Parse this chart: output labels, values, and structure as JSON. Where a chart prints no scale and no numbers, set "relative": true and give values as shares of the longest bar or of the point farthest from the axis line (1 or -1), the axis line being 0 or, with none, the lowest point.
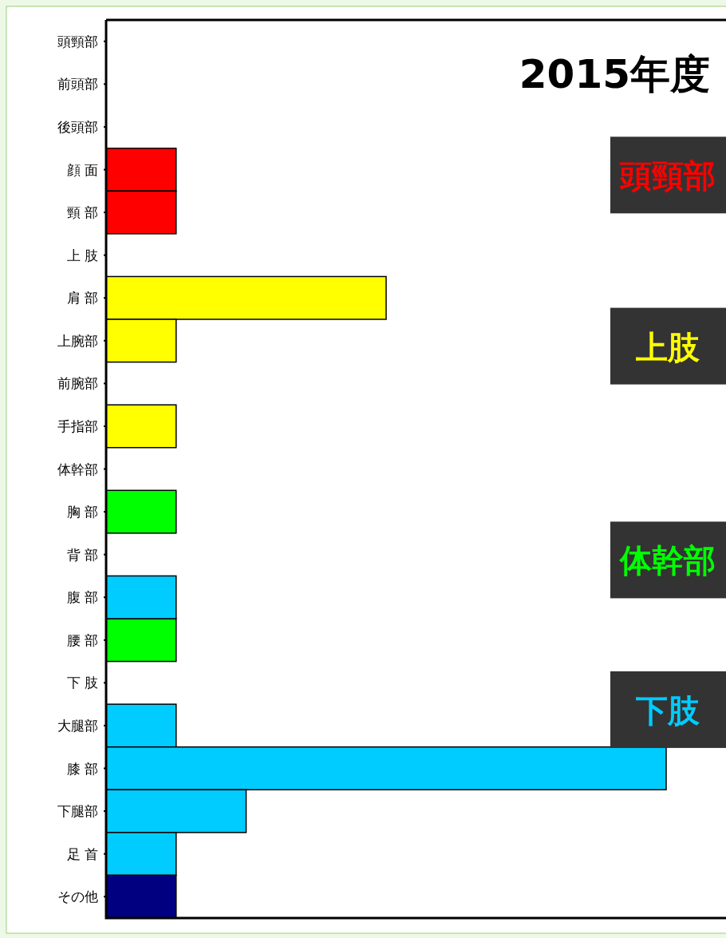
{
  "chart_data": {
    "type": "bar",
    "orientation": "horizontal",
    "relative": true,
    "title": "2015年度",
    "legend": "right",
    "categories": [
      "頭頸部",
      "前頭部",
      "後頭部",
      "顔 面",
      "頸 部",
      "上 肢",
      "肩 部",
      "上腕部",
      "前腕部",
      "手指部",
      "体幹部",
      "胸 部",
      "背 部",
      "腹 部",
      "腰 部",
      "下 肢",
      "大腿部",
      "膝 部",
      "下腿部",
      "足 首",
      "その他"
    ],
    "series": [
      {
        "name": "頭頸部",
        "color": "#ff0000",
        "values": [
          null,
          null,
          null,
          0.125,
          0.125,
          null,
          null,
          null,
          null,
          null,
          null,
          null,
          null,
          null,
          null,
          null,
          null,
          null,
          null,
          null,
          null
        ]
      },
      {
        "name": "上肢",
        "color": "#ffff00",
        "values": [
          null,
          null,
          null,
          null,
          null,
          null,
          0.5,
          0.125,
          null,
          0.125,
          null,
          null,
          null,
          null,
          null,
          null,
          null,
          null,
          null,
          null,
          null
        ]
      },
      {
        "name": "体幹部",
        "color": "#00ff00",
        "values": [
          null,
          null,
          null,
          null,
          null,
          null,
          null,
          null,
          null,
          null,
          null,
          0.125,
          null,
          null,
          0.125,
          null,
          null,
          null,
          null,
          null,
          null
        ]
      },
      {
        "name": "下肢",
        "color": "#00ccff",
        "values": [
          null,
          null,
          null,
          null,
          null,
          null,
          null,
          null,
          null,
          null,
          null,
          null,
          null,
          0.125,
          null,
          null,
          0.125,
          1,
          0.25,
          0.125,
          null
        ]
      },
      {
        "color": "#000080",
        "values": [
          null,
          null,
          null,
          null,
          null,
          null,
          null,
          null,
          null,
          null,
          null,
          null,
          null,
          null,
          null,
          null,
          null,
          null,
          null,
          null,
          0.125
        ]
      }
    ]
  }
}
